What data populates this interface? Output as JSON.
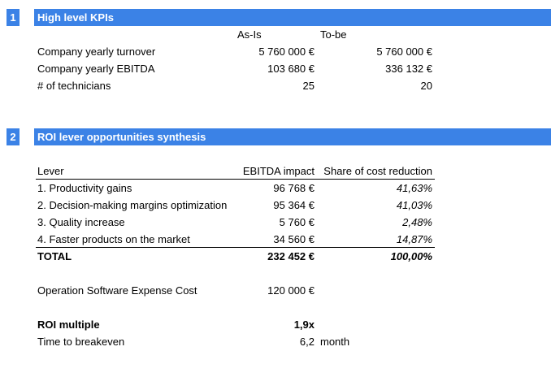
{
  "section1": {
    "number": "1",
    "title": "High level KPIs",
    "col_asis": "As-Is",
    "col_tobe": "To-be",
    "rows": [
      {
        "label": "Company yearly turnover",
        "asis": "5 760 000 €",
        "tobe": "5 760 000 €"
      },
      {
        "label": "Company yearly EBITDA",
        "asis": "103 680 €",
        "tobe": "336 132 €"
      },
      {
        "label": "# of technicians",
        "asis": "25",
        "tobe": "20"
      }
    ]
  },
  "section2": {
    "number": "2",
    "title": "ROI lever opportunities synthesis",
    "col_lever": "Lever",
    "col_impact": "EBITDA impact",
    "col_share": "Share of cost reduction",
    "rows": [
      {
        "lever": "1. Productivity gains",
        "impact": "96 768 €",
        "share": "41,63%"
      },
      {
        "lever": "2. Decision-making margins optimization",
        "impact": "95 364 €",
        "share": "41,03%"
      },
      {
        "lever": "3. Quality increase",
        "impact": "5 760 €",
        "share": "2,48%"
      },
      {
        "lever": "4. Faster products on the market",
        "impact": "34 560 €",
        "share": "14,87%"
      }
    ],
    "total": {
      "label": "TOTAL",
      "impact": "232 452 €",
      "share": "100,00%"
    },
    "expense": {
      "label": "Operation Software Expense Cost",
      "value": "120 000 €"
    },
    "roi": {
      "label": "ROI multiple",
      "value": "1,9x"
    },
    "breakeven": {
      "label": "Time to breakeven",
      "value": "6,2",
      "unit": "month"
    }
  }
}
